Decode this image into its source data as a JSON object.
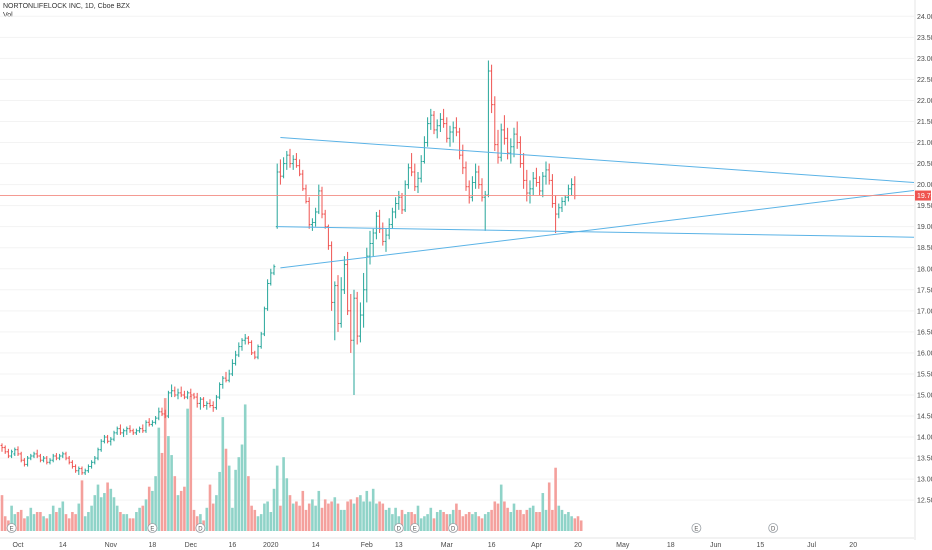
{
  "legend": {
    "title": "NORTONLIFELOCK INC, 1D, Cboe BZX",
    "volume_label": "Vol"
  },
  "colors": {
    "up": "#26a69a",
    "down": "#ef5350",
    "volume_up": "#8fd3c8",
    "volume_down": "#f4a09c",
    "trendline": "#5bb3e6",
    "last_price_line": "#f28b82",
    "last_price_tag": "#ef5350",
    "axis_text": "#4a4a4a"
  },
  "chart_data": {
    "type": "ohlc",
    "last_price": "19.74",
    "last_price_value": 19.74,
    "y_axis": {
      "min": 12.1,
      "max": 24.15,
      "ticks": [
        12.5,
        13.0,
        13.5,
        14.0,
        14.5,
        15.0,
        15.5,
        16.0,
        16.5,
        17.0,
        17.5,
        18.0,
        18.5,
        19.0,
        19.5,
        20.0,
        20.5,
        21.0,
        21.5,
        22.0,
        22.5,
        23.0,
        23.5,
        24.0
      ],
      "tick_labels": [
        "12.50",
        "13.00",
        "13.50",
        "14.00",
        "14.50",
        "15.00",
        "15.50",
        "16.00",
        "16.50",
        "17.00",
        "17.50",
        "18.00",
        "18.50",
        "19.00",
        "19.50",
        "20.00",
        "20.50",
        "21.00",
        "21.50",
        "22.00",
        "22.50",
        "23.00",
        "23.50",
        "24.00"
      ]
    },
    "x_axis": {
      "tick_labels": [
        "Oct",
        "14",
        "Nov",
        "18",
        "Dec",
        "16",
        "2020",
        "14",
        "Feb",
        "13",
        "Mar",
        "16",
        "Apr",
        "20",
        "May",
        "18",
        "Jun",
        "15",
        "Jul",
        "20"
      ],
      "tick_bar_index": [
        5,
        19,
        34,
        47,
        59,
        72,
        84,
        98,
        114,
        124,
        139,
        153,
        167,
        180,
        194,
        209,
        223,
        237,
        253,
        266
      ]
    },
    "bars": [
      [
        13.8,
        13.85,
        13.65,
        13.75
      ],
      [
        13.75,
        13.8,
        13.6,
        13.65
      ],
      [
        13.65,
        13.72,
        13.5,
        13.55
      ],
      [
        13.55,
        13.7,
        13.5,
        13.65
      ],
      [
        13.6,
        13.75,
        13.55,
        13.7
      ],
      [
        13.7,
        13.78,
        13.55,
        13.6
      ],
      [
        13.6,
        13.65,
        13.4,
        13.45
      ],
      [
        13.45,
        13.5,
        13.3,
        13.35
      ],
      [
        13.35,
        13.55,
        13.3,
        13.5
      ],
      [
        13.5,
        13.6,
        13.45,
        13.55
      ],
      [
        13.55,
        13.65,
        13.5,
        13.6
      ],
      [
        13.6,
        13.7,
        13.5,
        13.55
      ],
      [
        13.55,
        13.6,
        13.4,
        13.45
      ],
      [
        13.45,
        13.55,
        13.4,
        13.5
      ],
      [
        13.5,
        13.55,
        13.35,
        13.4
      ],
      [
        13.4,
        13.5,
        13.35,
        13.45
      ],
      [
        13.45,
        13.6,
        13.4,
        13.55
      ],
      [
        13.55,
        13.62,
        13.45,
        13.5
      ],
      [
        13.5,
        13.6,
        13.45,
        13.55
      ],
      [
        13.55,
        13.65,
        13.5,
        13.6
      ],
      [
        13.6,
        13.65,
        13.45,
        13.5
      ],
      [
        13.5,
        13.55,
        13.35,
        13.4
      ],
      [
        13.4,
        13.45,
        13.25,
        13.3
      ],
      [
        13.3,
        13.35,
        13.15,
        13.2
      ],
      [
        13.2,
        13.3,
        13.1,
        13.25
      ],
      [
        13.25,
        13.3,
        13.1,
        13.15
      ],
      [
        13.15,
        13.25,
        13.1,
        13.2
      ],
      [
        13.2,
        13.35,
        13.15,
        13.3
      ],
      [
        13.3,
        13.45,
        13.25,
        13.4
      ],
      [
        13.4,
        13.55,
        13.35,
        13.5
      ],
      [
        13.5,
        13.75,
        13.45,
        13.7
      ],
      [
        13.7,
        13.95,
        13.65,
        13.9
      ],
      [
        13.9,
        14.05,
        13.85,
        14.0
      ],
      [
        14.0,
        14.05,
        13.85,
        13.9
      ],
      [
        13.9,
        14.0,
        13.8,
        13.95
      ],
      [
        13.95,
        14.15,
        13.9,
        14.1
      ],
      [
        14.1,
        14.25,
        14.05,
        14.2
      ],
      [
        14.2,
        14.3,
        14.05,
        14.1
      ],
      [
        14.1,
        14.2,
        14.0,
        14.15
      ],
      [
        14.15,
        14.25,
        14.05,
        14.2
      ],
      [
        14.2,
        14.28,
        14.1,
        14.15
      ],
      [
        14.15,
        14.2,
        14.05,
        14.1
      ],
      [
        14.1,
        14.2,
        14.05,
        14.15
      ],
      [
        14.15,
        14.25,
        14.1,
        14.2
      ],
      [
        14.2,
        14.3,
        14.1,
        14.15
      ],
      [
        14.15,
        14.4,
        14.1,
        14.35
      ],
      [
        14.35,
        14.45,
        14.25,
        14.3
      ],
      [
        14.3,
        14.4,
        14.25,
        14.35
      ],
      [
        14.35,
        14.5,
        14.3,
        14.45
      ],
      [
        14.45,
        14.7,
        14.4,
        14.6
      ],
      [
        14.6,
        14.7,
        14.5,
        14.55
      ],
      [
        14.55,
        14.65,
        14.45,
        14.5
      ],
      [
        14.5,
        15.1,
        14.45,
        15.05
      ],
      [
        15.05,
        15.25,
        14.95,
        15.1
      ],
      [
        15.1,
        15.2,
        14.95,
        15.0
      ],
      [
        15.0,
        15.15,
        14.9,
        15.05
      ],
      [
        15.05,
        15.2,
        14.95,
        15.0
      ],
      [
        15.0,
        15.1,
        14.9,
        14.95
      ],
      [
        14.95,
        15.1,
        14.9,
        15.05
      ],
      [
        15.05,
        15.15,
        14.95,
        15.0
      ],
      [
        15.0,
        15.05,
        14.9,
        14.95
      ],
      [
        14.95,
        15.05,
        14.7,
        14.8
      ],
      [
        14.8,
        14.95,
        14.65,
        14.9
      ],
      [
        14.9,
        14.95,
        14.7,
        14.75
      ],
      [
        14.75,
        14.85,
        14.65,
        14.8
      ],
      [
        14.8,
        14.9,
        14.7,
        14.75
      ],
      [
        14.75,
        14.85,
        14.6,
        14.7
      ],
      [
        14.7,
        15.0,
        14.65,
        14.95
      ],
      [
        14.95,
        15.3,
        14.9,
        15.25
      ],
      [
        15.25,
        15.45,
        15.15,
        15.4
      ],
      [
        15.4,
        15.55,
        15.3,
        15.35
      ],
      [
        15.35,
        15.6,
        15.3,
        15.5
      ],
      [
        15.5,
        15.85,
        15.45,
        15.75
      ],
      [
        15.75,
        16.05,
        15.7,
        15.95
      ],
      [
        15.95,
        16.25,
        15.9,
        16.15
      ],
      [
        16.15,
        16.35,
        16.05,
        16.3
      ],
      [
        16.3,
        16.45,
        16.2,
        16.35
      ],
      [
        16.35,
        16.4,
        16.2,
        16.25
      ],
      [
        16.25,
        16.3,
        15.95,
        16.0
      ],
      [
        16.0,
        16.05,
        15.85,
        15.9
      ],
      [
        15.9,
        16.2,
        15.85,
        16.15
      ],
      [
        16.15,
        16.5,
        16.1,
        16.45
      ],
      [
        16.45,
        17.1,
        16.4,
        17.05
      ],
      [
        17.05,
        17.75,
        17.0,
        17.65
      ],
      [
        17.65,
        18.0,
        17.6,
        17.9
      ],
      [
        17.9,
        18.1,
        17.85,
        18.05
      ],
      [
        19.0,
        20.5,
        18.95,
        20.3
      ],
      [
        20.3,
        20.6,
        20.0,
        20.2
      ],
      [
        20.2,
        20.65,
        20.15,
        20.5
      ],
      [
        20.5,
        20.8,
        20.35,
        20.7
      ],
      [
        20.7,
        20.85,
        20.4,
        20.5
      ],
      [
        20.5,
        20.7,
        20.35,
        20.6
      ],
      [
        20.6,
        20.75,
        20.4,
        20.45
      ],
      [
        20.45,
        20.6,
        20.2,
        20.25
      ],
      [
        20.25,
        20.35,
        19.85,
        19.9
      ],
      [
        19.9,
        20.0,
        19.55,
        19.6
      ],
      [
        19.6,
        19.7,
        18.95,
        19.05
      ],
      [
        19.05,
        19.2,
        18.9,
        19.1
      ],
      [
        19.1,
        19.45,
        19.0,
        19.35
      ],
      [
        19.35,
        20.0,
        19.3,
        19.85
      ],
      [
        19.85,
        19.95,
        19.2,
        19.3
      ],
      [
        19.3,
        19.4,
        18.95,
        19.0
      ],
      [
        19.0,
        19.05,
        18.45,
        18.55
      ],
      [
        18.55,
        18.65,
        17.0,
        17.2
      ],
      [
        17.2,
        17.7,
        16.3,
        17.6
      ],
      [
        17.6,
        17.85,
        16.5,
        16.7
      ],
      [
        16.7,
        17.8,
        16.6,
        17.5
      ],
      [
        17.5,
        18.3,
        17.4,
        18.1
      ],
      [
        18.1,
        18.4,
        16.9,
        17.0
      ],
      [
        17.0,
        17.4,
        16.0,
        16.3
      ],
      [
        16.3,
        17.5,
        15.0,
        17.3
      ],
      [
        17.3,
        17.45,
        16.2,
        16.4
      ],
      [
        16.4,
        17.2,
        16.25,
        16.9
      ],
      [
        16.9,
        17.9,
        16.6,
        17.5
      ],
      [
        17.5,
        18.5,
        17.2,
        18.3
      ],
      [
        18.3,
        18.9,
        18.1,
        18.6
      ],
      [
        18.6,
        18.95,
        18.3,
        18.85
      ],
      [
        18.85,
        19.35,
        18.7,
        19.25
      ],
      [
        19.25,
        19.4,
        18.85,
        18.95
      ],
      [
        18.95,
        19.1,
        18.55,
        18.65
      ],
      [
        18.65,
        18.95,
        18.4,
        18.8
      ],
      [
        18.8,
        19.2,
        18.7,
        19.05
      ],
      [
        19.05,
        19.45,
        18.95,
        19.35
      ],
      [
        19.35,
        19.7,
        19.2,
        19.55
      ],
      [
        19.55,
        19.85,
        19.4,
        19.7
      ],
      [
        19.7,
        19.8,
        19.3,
        19.4
      ],
      [
        19.4,
        20.1,
        19.35,
        20.0
      ],
      [
        20.0,
        20.5,
        19.9,
        20.4
      ],
      [
        20.4,
        20.75,
        20.2,
        20.3
      ],
      [
        20.3,
        20.5,
        19.85,
        19.95
      ],
      [
        19.95,
        20.3,
        19.8,
        20.15
      ],
      [
        20.15,
        20.7,
        20.05,
        20.55
      ],
      [
        20.55,
        21.15,
        20.5,
        21.0
      ],
      [
        21.0,
        21.6,
        20.9,
        21.45
      ],
      [
        21.45,
        21.8,
        21.3,
        21.65
      ],
      [
        21.65,
        21.75,
        21.2,
        21.3
      ],
      [
        21.3,
        21.55,
        21.1,
        21.4
      ],
      [
        21.4,
        21.7,
        21.25,
        21.55
      ],
      [
        21.55,
        21.8,
        21.35,
        21.45
      ],
      [
        21.45,
        21.6,
        21.0,
        21.1
      ],
      [
        21.1,
        21.4,
        20.9,
        21.25
      ],
      [
        21.25,
        21.5,
        21.0,
        21.35
      ],
      [
        21.35,
        21.6,
        21.15,
        21.25
      ],
      [
        21.25,
        21.35,
        20.6,
        20.7
      ],
      [
        20.7,
        20.95,
        20.25,
        20.4
      ],
      [
        20.4,
        20.55,
        19.85,
        19.95
      ],
      [
        19.95,
        20.1,
        19.55,
        19.7
      ],
      [
        19.7,
        20.2,
        19.6,
        20.05
      ],
      [
        20.05,
        20.5,
        19.9,
        20.3
      ],
      [
        20.3,
        20.45,
        19.9,
        20.0
      ],
      [
        20.0,
        20.15,
        19.6,
        19.7
      ],
      [
        19.7,
        19.85,
        18.9,
        19.75
      ],
      [
        19.75,
        22.95,
        19.7,
        22.7
      ],
      [
        22.7,
        22.85,
        21.7,
        21.9
      ],
      [
        21.9,
        22.1,
        20.8,
        20.95
      ],
      [
        20.95,
        21.3,
        20.5,
        20.65
      ],
      [
        20.65,
        21.45,
        20.55,
        21.3
      ],
      [
        21.3,
        21.65,
        20.95,
        21.1
      ],
      [
        21.1,
        21.35,
        20.6,
        20.75
      ],
      [
        20.75,
        21.1,
        20.5,
        20.9
      ],
      [
        20.9,
        21.35,
        20.65,
        21.2
      ],
      [
        21.2,
        21.5,
        20.85,
        21.0
      ],
      [
        21.0,
        21.15,
        20.4,
        20.5
      ],
      [
        20.5,
        20.75,
        19.9,
        20.1
      ],
      [
        20.1,
        20.35,
        19.6,
        19.8
      ],
      [
        19.8,
        20.1,
        19.55,
        19.9
      ],
      [
        19.9,
        20.3,
        19.75,
        20.15
      ],
      [
        20.15,
        20.4,
        19.95,
        20.05
      ],
      [
        20.05,
        20.2,
        19.75,
        19.85
      ],
      [
        19.85,
        20.3,
        19.7,
        20.2
      ],
      [
        20.2,
        20.55,
        20.0,
        20.35
      ],
      [
        20.35,
        20.5,
        20.0,
        20.1
      ],
      [
        20.1,
        20.25,
        19.45,
        19.55
      ],
      [
        19.55,
        19.75,
        18.85,
        19.3
      ],
      [
        19.3,
        19.55,
        19.2,
        19.45
      ],
      [
        19.45,
        19.7,
        19.35,
        19.6
      ],
      [
        19.6,
        19.75,
        19.5,
        19.7
      ],
      [
        19.7,
        20.0,
        19.6,
        19.9
      ],
      [
        19.9,
        20.15,
        19.75,
        20.0
      ],
      [
        20.0,
        20.2,
        19.65,
        19.74
      ]
    ],
    "volume": [
      1.7,
      0.7,
      0.5,
      1.2,
      0.8,
      0.9,
      1.0,
      0.6,
      0.7,
      1.1,
      0.8,
      0.9,
      0.9,
      0.7,
      0.6,
      0.8,
      1.2,
      0.9,
      1.1,
      1.4,
      0.8,
      0.6,
      0.9,
      0.8,
      1.3,
      2.4,
      0.7,
      0.9,
      1.2,
      1.7,
      2.2,
      1.6,
      1.8,
      2.3,
      2.0,
      1.6,
      1.2,
      0.9,
      0.8,
      0.8,
      0.6,
      0.6,
      0.9,
      1.1,
      1.2,
      1.5,
      2.1,
      1.9,
      2.6,
      4.9,
      3.7,
      6.3,
      4.5,
      3.6,
      2.6,
      1.7,
      1.9,
      2.1,
      5.8,
      6.4,
      1.0,
      0.7,
      0.8,
      0.5,
      1.1,
      2.2,
      1.3,
      1.7,
      2.8,
      5.4,
      3.9,
      3.1,
      1.1,
      2.9,
      3.5,
      4.1,
      6.0,
      2.6,
      1.2,
      1.0,
      0.7,
      0.8,
      1.3,
      1.4,
      0.9,
      2.0,
      3.1,
      1.2,
      3.5,
      2.5,
      1.7,
      1.3,
      1.4,
      1.2,
      1.9,
      1.0,
      1.3,
      1.5,
      1.2,
      1.9,
      1.1,
      1.5,
      1.3,
      1.4,
      1.6,
      1.3,
      1.0,
      1.0,
      1.4,
      1.5,
      1.3,
      1.6,
      1.7,
      1.4,
      1.9,
      1.4,
      2.0,
      1.3,
      1.4,
      1.3,
      1.0,
      1.1,
      0.8,
      1.1,
      0.7,
      1.0,
      0.8,
      0.9,
      0.9,
      0.8,
      1.2,
      0.6,
      0.7,
      0.8,
      1.1,
      0.6,
      0.9,
      1.0,
      0.9,
      0.8,
      0.8,
      1.0,
      1.3,
      1.0,
      0.7,
      0.8,
      0.9,
      0.8,
      0.9,
      0.7,
      0.6,
      0.8,
      0.9,
      1.0,
      1.4,
      1.3,
      2.2,
      1.4,
      1.1,
      0.9,
      1.3,
      1.0,
      1.0,
      0.8,
      1.0,
      1.1,
      1.2,
      0.9,
      0.9,
      1.8,
      1.0,
      2.3,
      1.0,
      3.0,
      1.2,
      1.0,
      0.8,
      0.9,
      0.7,
      0.6,
      0.7,
      0.5
    ],
    "events": [
      {
        "bar": 3,
        "label": "E"
      },
      {
        "bar": 47,
        "label": "E"
      },
      {
        "bar": 62,
        "label": "D"
      },
      {
        "bar": 124,
        "label": "D"
      },
      {
        "bar": 129,
        "label": "E"
      },
      {
        "bar": 141,
        "label": "D"
      },
      {
        "bar": 217,
        "label": "E"
      },
      {
        "bar": 241,
        "label": "D"
      }
    ],
    "trendlines": [
      {
        "from": {
          "bar": 87,
          "price": 21.12
        },
        "to": {
          "bar": 300,
          "price": 20.05
        }
      },
      {
        "from": {
          "bar": 87,
          "price": 18.02
        },
        "to": {
          "bar": 300,
          "price": 19.86
        }
      },
      {
        "from": {
          "bar": 86,
          "price": 19.0
        },
        "to": {
          "bar": 300,
          "price": 18.75
        }
      }
    ]
  }
}
